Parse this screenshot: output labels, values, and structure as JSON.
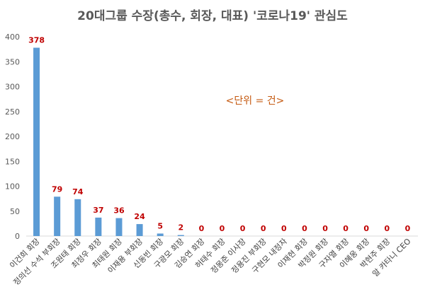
{
  "chart_data": {
    "type": "bar",
    "title": "20대그룹 수장(총수, 회장, 대표) '코로나19' 관심도",
    "annotation": "<단위 = 건>",
    "categories": [
      "이건희 회장",
      "정의선 수석 부회장",
      "조원태 회장",
      "최정우 회장",
      "최태원 회장",
      "이재용 부회장",
      "신동빈 회장",
      "구광모 회장",
      "김승연 회장",
      "허태수 회장",
      "정몽준 이사장",
      "정용진 부회장",
      "구현모 내정자",
      "이재현 회장",
      "박정원 회장",
      "구자열 회장",
      "이혜웅 회장",
      "박현주 회장",
      "알 카타니 CEO"
    ],
    "values": [
      378,
      79,
      74,
      37,
      36,
      24,
      5,
      2,
      0,
      0,
      0,
      0,
      0,
      0,
      0,
      0,
      0,
      0,
      0
    ],
    "data_labels": [
      "378",
      "79",
      "74",
      "37",
      "36",
      "24",
      "5",
      "2",
      "0",
      "0",
      "0",
      "0",
      "0",
      "0",
      "0",
      "0",
      "0",
      "0",
      "0"
    ],
    "yticks": [
      "0",
      "50",
      "100",
      "150",
      "200",
      "250",
      "300",
      "350",
      "400"
    ],
    "ylim": [
      0,
      400
    ],
    "grid": false,
    "legend": "none",
    "colors": {
      "bar": "#5b9bd5",
      "label": "#c00000",
      "axis": "#d9d9d9",
      "title": "#595959",
      "annotation": "#c55a11"
    }
  }
}
